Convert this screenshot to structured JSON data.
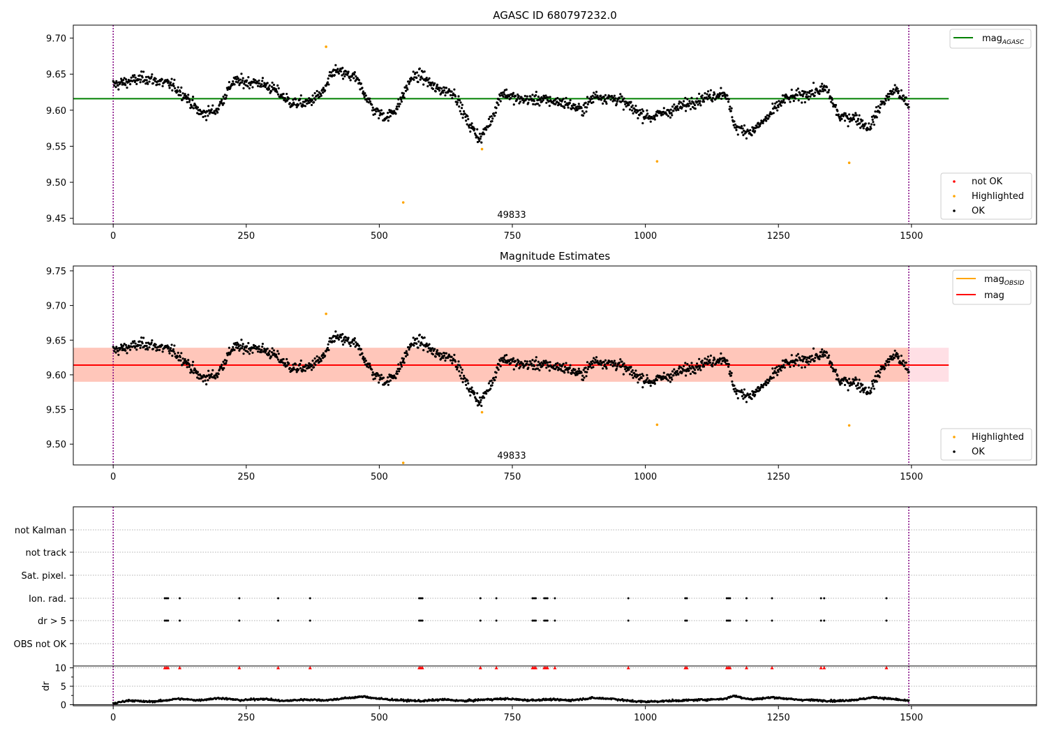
{
  "colors": {
    "ok": "#000000",
    "not_ok": "#ff0000",
    "highlighted": "#ffa500",
    "mag_agasc": "#008000",
    "mag_obsid": "#ffa500",
    "mag": "#ff0000",
    "band_outer": "#ffc0cb",
    "band_inner": "#ffa07a",
    "vline": "#800080",
    "flag_marker": "#ff0000",
    "grid": "#b0b0b0"
  },
  "chart_data": [
    {
      "type": "scatter",
      "title": "AGASC ID 680797232.0",
      "xlabel": "",
      "ylabel": "",
      "xlim": [
        -75,
        1735
      ],
      "ylim": [
        9.442,
        9.718
      ],
      "x_ticks": [
        0,
        250,
        500,
        750,
        1000,
        1250,
        1500
      ],
      "y_ticks": [
        9.45,
        9.5,
        9.55,
        9.6,
        9.65,
        9.7
      ],
      "y_tick_labels": [
        "9.45",
        "9.50",
        "9.55",
        "9.60",
        "9.65",
        "9.70"
      ],
      "obsid_boundaries": [
        0,
        1495
      ],
      "obsid_label": "49833",
      "obsid_label_x": 747,
      "mag_agasc": 9.616,
      "mag_agasc_x_range": [
        -75,
        1570
      ],
      "series": [
        {
          "name": "not OK",
          "points": []
        },
        {
          "name": "Highlighted",
          "points": [
            [
              400,
              9.688
            ],
            [
              545,
              9.472
            ],
            [
              693,
              9.546
            ],
            [
              1022,
              9.529
            ],
            [
              1383,
              9.527
            ]
          ]
        },
        {
          "name": "OK",
          "trend": [
            [
              0,
              9.635
            ],
            [
              60,
              9.645
            ],
            [
              110,
              9.635
            ],
            [
              135,
              9.62
            ],
            [
              165,
              9.595
            ],
            [
              195,
              9.6
            ],
            [
              225,
              9.64
            ],
            [
              275,
              9.638
            ],
            [
              300,
              9.63
            ],
            [
              335,
              9.61
            ],
            [
              365,
              9.61
            ],
            [
              395,
              9.625
            ],
            [
              415,
              9.655
            ],
            [
              455,
              9.645
            ],
            [
              475,
              9.62
            ],
            [
              490,
              9.6
            ],
            [
              515,
              9.59
            ],
            [
              535,
              9.605
            ],
            [
              560,
              9.645
            ],
            [
              580,
              9.648
            ],
            [
              605,
              9.63
            ],
            [
              640,
              9.625
            ],
            [
              665,
              9.585
            ],
            [
              690,
              9.56
            ],
            [
              712,
              9.59
            ],
            [
              730,
              9.625
            ],
            [
              760,
              9.615
            ],
            [
              800,
              9.615
            ],
            [
              850,
              9.61
            ],
            [
              880,
              9.6
            ],
            [
              905,
              9.62
            ],
            [
              950,
              9.615
            ],
            [
              985,
              9.598
            ],
            [
              1010,
              9.59
            ],
            [
              1050,
              9.6
            ],
            [
              1100,
              9.615
            ],
            [
              1150,
              9.625
            ],
            [
              1170,
              9.575
            ],
            [
              1200,
              9.57
            ],
            [
              1230,
              9.59
            ],
            [
              1260,
              9.615
            ],
            [
              1300,
              9.622
            ],
            [
              1340,
              9.63
            ],
            [
              1365,
              9.59
            ],
            [
              1395,
              9.59
            ],
            [
              1420,
              9.575
            ],
            [
              1445,
              9.61
            ],
            [
              1470,
              9.63
            ],
            [
              1495,
              9.605
            ]
          ]
        }
      ]
    },
    {
      "type": "scatter",
      "title": "Magnitude Estimates",
      "xlabel": "",
      "ylabel": "",
      "xlim": [
        -75,
        1735
      ],
      "ylim": [
        9.47,
        9.757
      ],
      "x_ticks": [
        0,
        250,
        500,
        750,
        1000,
        1250,
        1500
      ],
      "y_ticks": [
        9.5,
        9.55,
        9.6,
        9.65,
        9.7,
        9.75
      ],
      "y_tick_labels": [
        "9.50",
        "9.55",
        "9.60",
        "9.65",
        "9.70",
        "9.75"
      ],
      "obsid_boundaries": [
        0,
        1495
      ],
      "obsid_label": "49833",
      "obsid_label_x": 747,
      "mag_obsid": 9.614,
      "mag": 9.614,
      "mag_x_range": [
        -75,
        1570
      ],
      "mag_obsid_x_range": [
        0,
        1495
      ],
      "band_outer": [
        9.59,
        9.639
      ],
      "band_inner": [
        9.59,
        9.639
      ],
      "band_inner_x_range": [
        -75,
        1495
      ],
      "series": [
        {
          "name": "Highlighted",
          "points": [
            [
              400,
              9.688
            ],
            [
              545,
              9.473
            ],
            [
              693,
              9.546
            ],
            [
              1022,
              9.528
            ],
            [
              1383,
              9.527
            ]
          ]
        },
        {
          "name": "OK",
          "same_as_panel": 0
        }
      ]
    },
    {
      "type": "scatter",
      "title": "",
      "xlabel": "",
      "ylabel": "",
      "xlim": [
        -75,
        1735
      ],
      "categories": [
        "OBS not OK",
        "dr > 5",
        "Ion. rad.",
        "Sat. pixel.",
        "not track",
        "not Kalman"
      ],
      "obsid_boundaries": [
        0,
        1495
      ],
      "flag_events": {
        "dr > 5": [
          97,
          100,
          103,
          125,
          237,
          310,
          370,
          575,
          578,
          581,
          690,
          720,
          788,
          791,
          794,
          810,
          813,
          816,
          830,
          968,
          1075,
          1078,
          1153,
          1156,
          1159,
          1190,
          1238,
          1330,
          1336,
          1453
        ],
        "Ion. rad.": [
          97,
          100,
          103,
          125,
          237,
          310,
          370,
          575,
          578,
          581,
          690,
          720,
          788,
          791,
          794,
          810,
          813,
          816,
          830,
          968,
          1075,
          1078,
          1153,
          1156,
          1159,
          1190,
          1238,
          1330,
          1336,
          1453
        ]
      }
    },
    {
      "type": "scatter",
      "title": "",
      "xlabel": "",
      "ylabel": "dr",
      "xlim": [
        -75,
        1735
      ],
      "ylim": [
        -0.3,
        10.5
      ],
      "x_ticks": [
        0,
        250,
        500,
        750,
        1000,
        1250,
        1500
      ],
      "x_tick_labels": [
        "0",
        "250",
        "500",
        "750",
        "1000",
        "1250",
        "1500"
      ],
      "y_ticks": [
        0,
        5,
        10
      ],
      "y_tick_labels": [
        "0",
        "5",
        "10"
      ],
      "obsid_boundaries": [
        0,
        1495
      ],
      "clipped_at": 10,
      "dr_trend": [
        [
          0,
          0.3
        ],
        [
          30,
          1.2
        ],
        [
          60,
          0.8
        ],
        [
          90,
          1.0
        ],
        [
          120,
          1.6
        ],
        [
          160,
          1.2
        ],
        [
          200,
          1.8
        ],
        [
          240,
          1.2
        ],
        [
          280,
          1.6
        ],
        [
          320,
          1.0
        ],
        [
          360,
          1.4
        ],
        [
          400,
          1.2
        ],
        [
          440,
          1.8
        ],
        [
          470,
          2.2
        ],
        [
          500,
          1.6
        ],
        [
          540,
          1.2
        ],
        [
          580,
          1.0
        ],
        [
          620,
          1.4
        ],
        [
          660,
          1.0
        ],
        [
          700,
          1.4
        ],
        [
          740,
          1.6
        ],
        [
          780,
          1.2
        ],
        [
          820,
          1.4
        ],
        [
          860,
          1.2
        ],
        [
          900,
          1.8
        ],
        [
          940,
          1.6
        ],
        [
          970,
          1.0
        ],
        [
          1000,
          0.8
        ],
        [
          1040,
          1.0
        ],
        [
          1080,
          1.2
        ],
        [
          1120,
          1.4
        ],
        [
          1150,
          1.6
        ],
        [
          1165,
          2.4
        ],
        [
          1200,
          1.4
        ],
        [
          1240,
          2.0
        ],
        [
          1280,
          1.4
        ],
        [
          1320,
          1.2
        ],
        [
          1360,
          1.0
        ],
        [
          1400,
          1.4
        ],
        [
          1430,
          2.0
        ],
        [
          1460,
          1.6
        ],
        [
          1495,
          1.0
        ]
      ]
    }
  ],
  "legends": {
    "panel1_top": [
      "mag_AGASC"
    ],
    "panel1_bottom": [
      "not OK",
      "Highlighted",
      "OK"
    ],
    "panel2_top": [
      "mag_OBSID",
      "mag"
    ],
    "panel2_bottom": [
      "Highlighted",
      "OK"
    ]
  },
  "labels": {
    "mag_base": "mag",
    "agasc_sub": "AGASC",
    "obsid_sub": "OBSID"
  }
}
